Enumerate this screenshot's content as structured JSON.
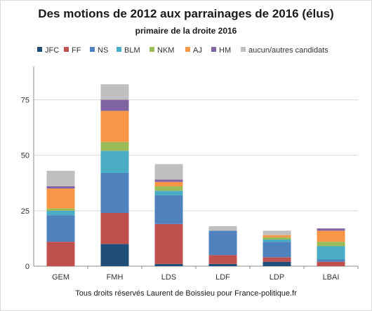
{
  "chart_data": {
    "type": "bar",
    "stacked": true,
    "title": "Des motions de 2012 aux parrainages de 2016 (élus)",
    "subtitle": "primaire de la droite 2016",
    "footer": "Tous droits réservés Laurent de Boissieu pour France-politique.fr",
    "categories": [
      "GEM",
      "FMH",
      "LDS",
      "LDF",
      "LDP",
      "LBAI"
    ],
    "ylim": [
      0,
      90
    ],
    "yticks": [
      0,
      25,
      50,
      75
    ],
    "grid": true,
    "legend_position": "top",
    "series": [
      {
        "name": "JFC",
        "color": "#1f4e79",
        "values": [
          0,
          10,
          1,
          1,
          2,
          0
        ]
      },
      {
        "name": "FF",
        "color": "#c0504d",
        "values": [
          11,
          14,
          18,
          4,
          2,
          2
        ]
      },
      {
        "name": "NS",
        "color": "#4f81bd",
        "values": [
          12,
          18,
          13,
          11,
          7,
          1
        ]
      },
      {
        "name": "BLM",
        "color": "#4bacc6",
        "values": [
          2,
          10,
          2,
          0,
          1,
          6
        ]
      },
      {
        "name": "NKM",
        "color": "#9bbb59",
        "values": [
          1,
          4,
          2,
          0,
          1,
          2
        ]
      },
      {
        "name": "AJ",
        "color": "#f79646",
        "values": [
          9,
          14,
          2,
          0,
          1,
          5
        ]
      },
      {
        "name": "HM",
        "color": "#8064a2",
        "values": [
          1,
          5,
          1,
          0,
          0,
          1
        ]
      },
      {
        "name": "aucun/autres candidats",
        "color": "#bfbfbf",
        "values": [
          7,
          7,
          7,
          2,
          2,
          0
        ]
      }
    ]
  }
}
